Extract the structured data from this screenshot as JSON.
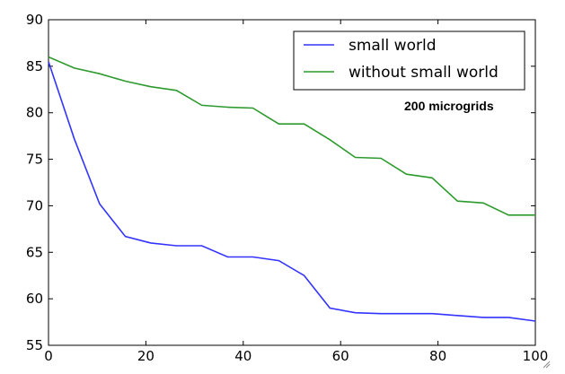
{
  "chart_data": {
    "type": "line",
    "title": "",
    "xlabel": "",
    "ylabel": "",
    "xlim": [
      0,
      100
    ],
    "ylim": [
      55,
      90
    ],
    "xticks": [
      0,
      20,
      40,
      60,
      80,
      100
    ],
    "yticks": [
      55,
      60,
      65,
      70,
      75,
      80,
      85,
      90
    ],
    "legend_position": "top-right",
    "annotation": "200 microgrids",
    "series": [
      {
        "name": "small world",
        "color": "#3333ff",
        "x": [
          0,
          5.3,
          10.5,
          15.8,
          21,
          26.3,
          31.5,
          36.8,
          42,
          47.3,
          52.5,
          57.8,
          63,
          68.3,
          73.5,
          78.8,
          84,
          89.3,
          94.5,
          100
        ],
        "y": [
          85.5,
          77.2,
          70.2,
          66.7,
          66.0,
          65.7,
          65.7,
          64.5,
          64.5,
          64.1,
          62.5,
          59.0,
          58.5,
          58.4,
          58.4,
          58.4,
          58.2,
          58.0,
          58.0,
          57.6
        ]
      },
      {
        "name": "without small world",
        "color": "#2d9a2d",
        "x": [
          0,
          5.3,
          10.5,
          15.8,
          21,
          26.3,
          31.5,
          36.8,
          42,
          47.3,
          52.5,
          57.8,
          63,
          68.3,
          73.5,
          78.8,
          84,
          89.3,
          94.5,
          100
        ],
        "y": [
          86.0,
          84.8,
          84.2,
          83.4,
          82.8,
          82.4,
          80.8,
          80.6,
          80.5,
          78.8,
          78.8,
          77.1,
          75.2,
          75.1,
          73.4,
          73.0,
          70.5,
          70.3,
          69.0,
          69.0
        ]
      }
    ]
  }
}
